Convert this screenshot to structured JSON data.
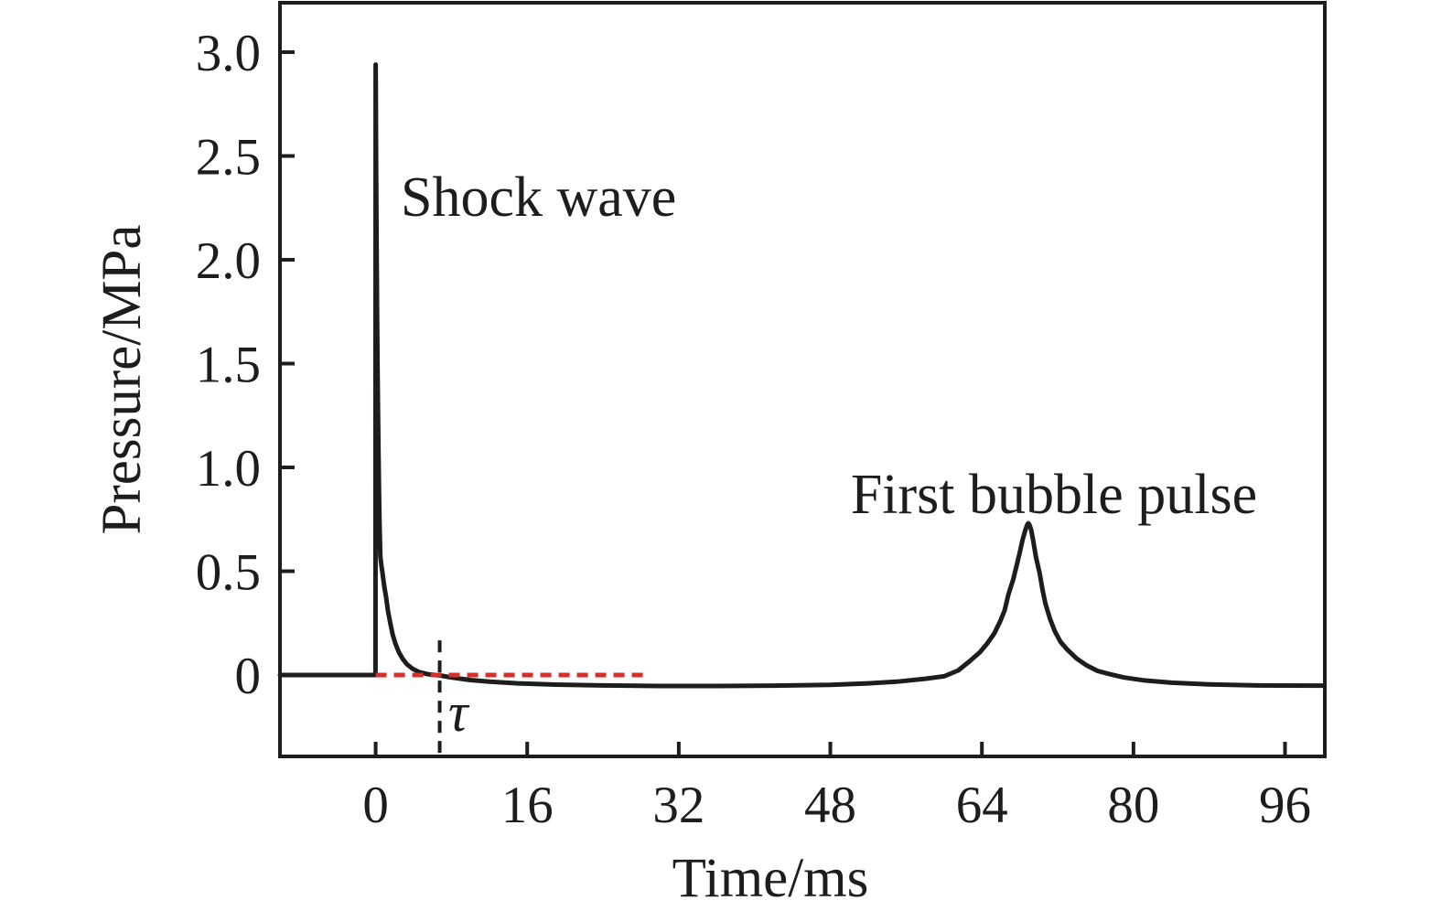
{
  "figure": {
    "background_color": "#ffffff",
    "curve_color": "#1d1d1b",
    "axis_color": "#1d1d1b",
    "reference_red": "#d62f28"
  },
  "chart_data": {
    "type": "line",
    "title": "",
    "xlabel": "Time/ms",
    "ylabel": "Pressure/MPa",
    "xlim": [
      -10.1,
      100.2
    ],
    "ylim": [
      -0.392,
      3.238
    ],
    "grid": false,
    "legend": "none",
    "x_ticks": [
      0,
      16,
      32,
      48,
      64,
      80,
      96
    ],
    "x_tick_labels": [
      "0",
      "16",
      "32",
      "48",
      "64",
      "80",
      "96"
    ],
    "y_ticks": [
      0,
      0.5,
      1.0,
      1.5,
      2.0,
      2.5,
      3.0
    ],
    "y_tick_labels": [
      "0",
      "0.5",
      "1.0",
      "1.5",
      "2.0",
      "2.5",
      "3.0"
    ],
    "annotations": {
      "shock_wave": "Shock wave",
      "first_bubble_pulse": "First bubble pulse",
      "tau": "τ"
    },
    "key_values": {
      "shock_wave_peak_mpa": 2.94,
      "shock_wave_time_ms": 0,
      "bubble_pulse_peak_mpa": 0.73,
      "bubble_pulse_time_ms": 68.9,
      "tau_marker_time_ms": 6.8
    },
    "reference_lines": [
      {
        "name": "zero-pressure-baseline",
        "orientation": "horizontal",
        "p": 0,
        "t_start": 0,
        "t_end": 28.7,
        "style": "dashed",
        "color": "#d62f28"
      },
      {
        "name": "tau-marker",
        "orientation": "vertical",
        "t": 6.76,
        "p_start": 0.167,
        "p_end": -0.392,
        "style": "dashed",
        "color": "#1d1d1b"
      }
    ],
    "series": [
      {
        "name": "pressure",
        "color": "#1d1d1b",
        "points": [
          [
            -10.1,
            0
          ],
          [
            -5,
            0
          ],
          [
            -0.02,
            0
          ],
          [
            0,
            2.94
          ],
          [
            0.05,
            2.45
          ],
          [
            0.1,
            2.08
          ],
          [
            0.15,
            1.76
          ],
          [
            0.2,
            1.49
          ],
          [
            0.25,
            1.26
          ],
          [
            0.3,
            1.07
          ],
          [
            0.35,
            0.9
          ],
          [
            0.4,
            0.76
          ],
          [
            0.45,
            0.66
          ],
          [
            0.5,
            0.57
          ],
          [
            0.6,
            0.53
          ],
          [
            0.7,
            0.5
          ],
          [
            0.9,
            0.43
          ],
          [
            1.1,
            0.375
          ],
          [
            1.3,
            0.31
          ],
          [
            1.55,
            0.25
          ],
          [
            1.8,
            0.195
          ],
          [
            2.1,
            0.15
          ],
          [
            2.45,
            0.11
          ],
          [
            2.85,
            0.078
          ],
          [
            3.3,
            0.052
          ],
          [
            3.9,
            0.03
          ],
          [
            4.6,
            0.014
          ],
          [
            5.5,
            0.004
          ],
          [
            6.8,
            -0.002
          ],
          [
            8,
            -0.012
          ],
          [
            10,
            -0.024
          ],
          [
            12,
            -0.032
          ],
          [
            15,
            -0.04
          ],
          [
            19,
            -0.046
          ],
          [
            24,
            -0.05
          ],
          [
            30,
            -0.053
          ],
          [
            36,
            -0.053
          ],
          [
            42,
            -0.051
          ],
          [
            48,
            -0.047
          ],
          [
            52,
            -0.04
          ],
          [
            55,
            -0.032
          ],
          [
            58,
            -0.018
          ],
          [
            60,
            -0.006
          ],
          [
            61.5,
            0.022
          ],
          [
            62.7,
            0.066
          ],
          [
            63.8,
            0.11
          ],
          [
            64.6,
            0.154
          ],
          [
            65.3,
            0.2
          ],
          [
            65.9,
            0.256
          ],
          [
            66.4,
            0.31
          ],
          [
            66.8,
            0.388
          ],
          [
            67.3,
            0.46
          ],
          [
            67.7,
            0.533
          ],
          [
            68,
            0.59
          ],
          [
            68.3,
            0.652
          ],
          [
            68.6,
            0.7
          ],
          [
            68.8,
            0.725
          ],
          [
            68.9,
            0.731
          ],
          [
            69.0,
            0.725
          ],
          [
            69.2,
            0.7
          ],
          [
            69.4,
            0.652
          ],
          [
            69.7,
            0.57
          ],
          [
            70.1,
            0.489
          ],
          [
            70.4,
            0.41
          ],
          [
            70.7,
            0.344
          ],
          [
            71.2,
            0.27
          ],
          [
            71.7,
            0.211
          ],
          [
            72.3,
            0.16
          ],
          [
            73,
            0.123
          ],
          [
            74,
            0.08
          ],
          [
            75,
            0.048
          ],
          [
            76.2,
            0.02
          ],
          [
            77.5,
            0.004
          ],
          [
            79,
            -0.012
          ],
          [
            81,
            -0.025
          ],
          [
            84,
            -0.037
          ],
          [
            88,
            -0.045
          ],
          [
            93,
            -0.05
          ],
          [
            100.1,
            -0.051
          ]
        ]
      }
    ]
  }
}
